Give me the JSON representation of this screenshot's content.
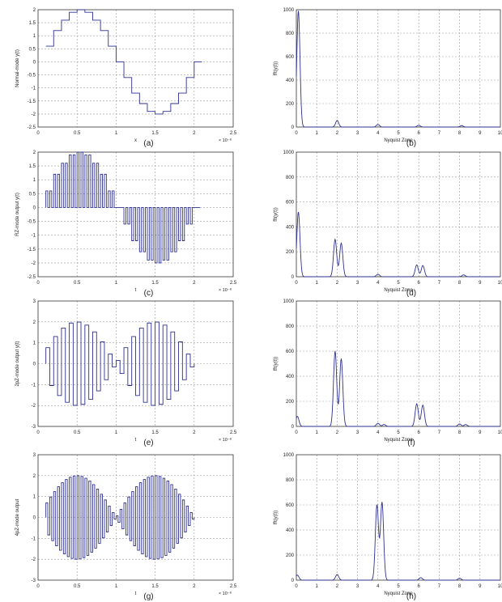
{
  "figure": {
    "panels": [
      {
        "id": "a",
        "kind": "time",
        "label": "(a)",
        "ylabel": "Normal-mode y(t)",
        "xlabel": "x",
        "exp": "× 10⁻⁸",
        "xlim": [
          0,
          2.5
        ],
        "ylim": [
          -2.5,
          2
        ],
        "xticks": [
          "0",
          "0.5",
          "1",
          "1.5",
          "2",
          "2.5"
        ],
        "yticks": [
          "-2.5",
          "-2",
          "-1.5",
          "-1",
          "-0.5",
          "0",
          "0.5",
          "1",
          "1.5",
          "2"
        ],
        "mode": "nrz"
      },
      {
        "id": "b",
        "kind": "freq",
        "label": "(b)",
        "ylabel": "fft(y(t))",
        "xlabel": "Nyquist Zone",
        "xlim": [
          0,
          10
        ],
        "ylim": [
          0,
          1000
        ],
        "xticks": [
          "0",
          "1",
          "2",
          "3",
          "4",
          "5",
          "6",
          "7",
          "8",
          "9",
          "10"
        ],
        "yticks": [
          "0",
          "200",
          "400",
          "600",
          "800",
          "1000"
        ]
      },
      {
        "id": "c",
        "kind": "time",
        "label": "(c)",
        "ylabel": "RZ-mode output y(t)",
        "xlabel": "t",
        "exp": "× 10⁻⁸",
        "xlim": [
          0,
          2.5
        ],
        "ylim": [
          -2.5,
          2
        ],
        "xticks": [
          "0",
          "0.5",
          "1",
          "1.5",
          "2",
          "2.5"
        ],
        "yticks": [
          "-2.5",
          "-2",
          "-1.5",
          "-1",
          "-0.5",
          "0",
          "0.5",
          "1",
          "1.5",
          "2"
        ],
        "mode": "rz"
      },
      {
        "id": "d",
        "kind": "freq",
        "label": "(d)",
        "ylabel": "fft(y(t))",
        "xlabel": "Nyquist Zone",
        "xlim": [
          0,
          10
        ],
        "ylim": [
          0,
          1000
        ],
        "xticks": [
          "0",
          "1",
          "2",
          "3",
          "4",
          "5",
          "6",
          "7",
          "8",
          "9",
          "10"
        ],
        "yticks": [
          "0",
          "200",
          "400",
          "600",
          "800",
          "1000"
        ]
      },
      {
        "id": "e",
        "kind": "time",
        "label": "(e)",
        "ylabel": "2pZ-mode output y(t)",
        "xlabel": "t",
        "exp": "× 10⁻⁸",
        "xlim": [
          0,
          2.5
        ],
        "ylim": [
          -3,
          3
        ],
        "xticks": [
          "0",
          "0.5",
          "1",
          "1.5",
          "2",
          "2.5"
        ],
        "yticks": [
          "-3",
          "-2",
          "-1",
          "0",
          "1",
          "2",
          "3"
        ],
        "mode": "rf"
      },
      {
        "id": "f",
        "kind": "freq",
        "label": "(f)",
        "ylabel": "fft(y(t))",
        "xlabel": "Nyquist Zone",
        "xlim": [
          0,
          10
        ],
        "ylim": [
          0,
          1000
        ],
        "xticks": [
          "0",
          "1",
          "2",
          "3",
          "4",
          "5",
          "6",
          "7",
          "8",
          "9",
          "10"
        ],
        "yticks": [
          "0",
          "200",
          "400",
          "600",
          "800",
          "1000"
        ]
      },
      {
        "id": "g",
        "kind": "time",
        "label": "(g)",
        "ylabel": "4pZ-mode output",
        "xlabel": "t",
        "exp": "× 10⁻⁸",
        "xlim": [
          0,
          2.5
        ],
        "ylim": [
          -3,
          3
        ],
        "xticks": [
          "0",
          "0.5",
          "1",
          "1.5",
          "2",
          "2.5"
        ],
        "yticks": [
          "-3",
          "-2",
          "-1",
          "0",
          "1",
          "2",
          "3"
        ],
        "mode": "rf2"
      },
      {
        "id": "h",
        "kind": "freq",
        "label": "(h)",
        "ylabel": "fft(y(t))",
        "xlabel": "Nyquist Zone",
        "xlim": [
          0,
          10
        ],
        "ylim": [
          0,
          1000
        ],
        "xticks": [
          "0",
          "1",
          "2",
          "3",
          "4",
          "5",
          "6",
          "7",
          "8",
          "9",
          "10"
        ],
        "yticks": [
          "0",
          "200",
          "400",
          "600",
          "800",
          "1000"
        ]
      }
    ]
  },
  "chart_data": [
    {
      "type": "line",
      "panel": "a",
      "xlabel": "x",
      "ylabel": "Normal-mode y(t)",
      "xlim": [
        0,
        2.5
      ],
      "ylim": [
        -2.5,
        2
      ],
      "x_multiplier": "1e-8",
      "x": [
        0.1,
        0.2,
        0.3,
        0.4,
        0.5,
        0.6,
        0.7,
        0.8,
        0.9,
        1.0,
        1.1,
        1.2,
        1.3,
        1.4,
        1.5,
        1.6,
        1.7,
        1.8,
        1.9,
        2.0
      ],
      "y": [
        0.6,
        1.2,
        1.6,
        1.9,
        2.0,
        1.9,
        1.6,
        1.2,
        0.6,
        0.0,
        -0.6,
        -1.2,
        -1.6,
        -1.9,
        -2.0,
        -1.9,
        -1.6,
        -1.2,
        -0.6,
        0.0
      ],
      "grid": true
    },
    {
      "type": "line",
      "panel": "b",
      "xlabel": "Nyquist Zone",
      "ylabel": "fft(y(t))",
      "xlim": [
        0,
        10
      ],
      "ylim": [
        0,
        1000
      ],
      "peaks": [
        {
          "x": 0.1,
          "y": 990
        },
        {
          "x": 2.0,
          "y": 55
        },
        {
          "x": 4.0,
          "y": 22
        },
        {
          "x": 6.0,
          "y": 15
        },
        {
          "x": 8.1,
          "y": 12
        }
      ],
      "grid": true
    },
    {
      "type": "line",
      "panel": "c",
      "xlabel": "t",
      "ylabel": "RZ-mode output y(t)",
      "xlim": [
        0,
        2.5
      ],
      "ylim": [
        -2.5,
        2
      ],
      "x_multiplier": "1e-8",
      "x": [
        0.1,
        0.2,
        0.3,
        0.4,
        0.5,
        0.6,
        0.7,
        0.8,
        0.9,
        1.0,
        1.1,
        1.2,
        1.3,
        1.4,
        1.5,
        1.6,
        1.7,
        1.8,
        1.9,
        2.0
      ],
      "y": [
        0.6,
        1.2,
        1.6,
        1.9,
        2.0,
        1.9,
        1.6,
        1.2,
        0.6,
        0.0,
        -0.6,
        -1.2,
        -1.6,
        -1.9,
        -2.0,
        -1.9,
        -1.6,
        -1.2,
        -0.6,
        0.0
      ],
      "mode": "return-to-zero",
      "grid": true
    },
    {
      "type": "line",
      "panel": "d",
      "xlabel": "Nyquist Zone",
      "ylabel": "fft(y(t))",
      "xlim": [
        0,
        10
      ],
      "ylim": [
        0,
        1000
      ],
      "peaks": [
        {
          "x": 0.1,
          "y": 520
        },
        {
          "x": 1.9,
          "y": 300
        },
        {
          "x": 2.2,
          "y": 270
        },
        {
          "x": 4.0,
          "y": 20
        },
        {
          "x": 5.9,
          "y": 95
        },
        {
          "x": 6.2,
          "y": 90
        },
        {
          "x": 8.2,
          "y": 15
        }
      ],
      "grid": true
    },
    {
      "type": "line",
      "panel": "e",
      "xlabel": "t",
      "ylabel": "2pZ-mode output y(t)",
      "xlim": [
        0,
        2.5
      ],
      "ylim": [
        -3,
        3
      ],
      "x_multiplier": "1e-8",
      "envelope_peak": 2.0,
      "mode": "alternating-sign pulses",
      "grid": true
    },
    {
      "type": "line",
      "panel": "f",
      "xlabel": "Nyquist Zone",
      "ylabel": "fft(y(t))",
      "xlim": [
        0,
        10
      ],
      "ylim": [
        0,
        1000
      ],
      "peaks": [
        {
          "x": 0.05,
          "y": 80
        },
        {
          "x": 1.9,
          "y": 600
        },
        {
          "x": 2.2,
          "y": 540
        },
        {
          "x": 4.0,
          "y": 25
        },
        {
          "x": 4.3,
          "y": 15
        },
        {
          "x": 5.9,
          "y": 180
        },
        {
          "x": 6.2,
          "y": 170
        },
        {
          "x": 8.0,
          "y": 20
        },
        {
          "x": 8.3,
          "y": 15
        }
      ],
      "grid": true
    },
    {
      "type": "line",
      "panel": "g",
      "xlabel": "t",
      "ylabel": "4pZ-mode output",
      "xlim": [
        0,
        2.5
      ],
      "ylim": [
        -3,
        3
      ],
      "x_multiplier": "1e-8",
      "envelope_peak": 2.0,
      "mode": "alternating-sign pulses (2× rate)",
      "grid": true
    },
    {
      "type": "line",
      "panel": "h",
      "xlabel": "Nyquist Zone",
      "ylabel": "fft(y(t))",
      "xlim": [
        0,
        10
      ],
      "ylim": [
        0,
        1000
      ],
      "peaks": [
        {
          "x": 0.05,
          "y": 40
        },
        {
          "x": 2.0,
          "y": 45
        },
        {
          "x": 3.95,
          "y": 600
        },
        {
          "x": 4.2,
          "y": 620
        },
        {
          "x": 6.1,
          "y": 20
        },
        {
          "x": 8.0,
          "y": 15
        }
      ],
      "grid": true
    }
  ],
  "colors": {
    "trace": "#2e3192",
    "grid": "#9a9a9a",
    "axis": "#333333"
  }
}
